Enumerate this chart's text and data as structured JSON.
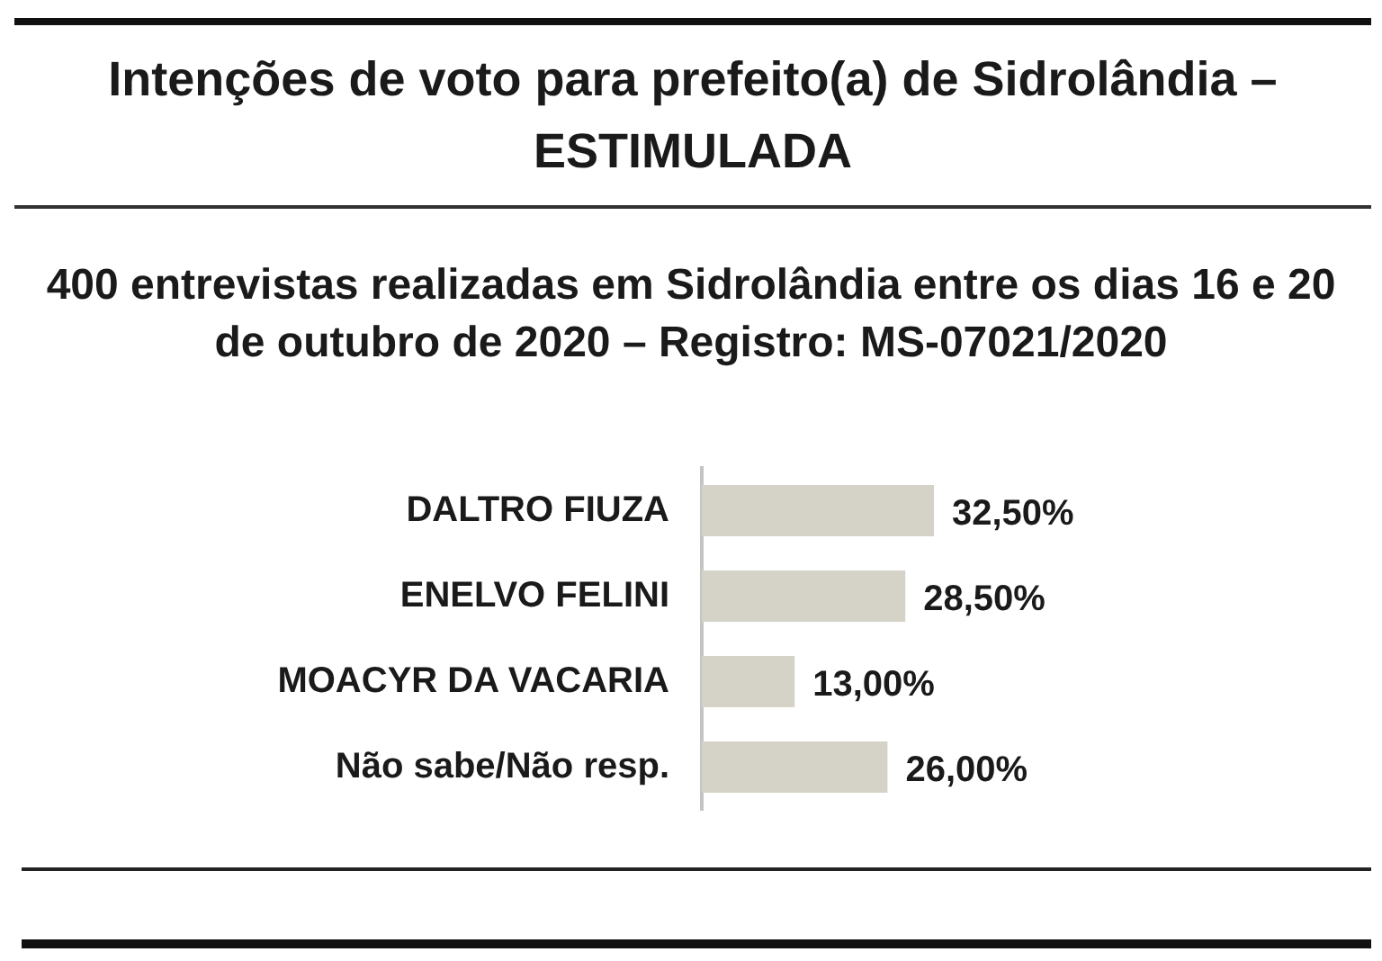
{
  "chart_data": {
    "type": "bar",
    "orientation": "horizontal",
    "title": "Intenções de voto para prefeito(a) de Sidrolândia – ESTIMULADA",
    "subtitle": "400 entrevistas realizadas em Sidrolândia entre os dias 16 e 20 de outubro de 2020 – Registro: MS-07021/2020",
    "categories": [
      "DALTRO FIUZA",
      "ENELVO FELINI",
      "MOACYR DA VACARIA",
      "Não sabe/Não resp."
    ],
    "values": [
      32.5,
      28.5,
      13,
      26
    ],
    "value_labels": [
      "32,50%",
      "28,50%",
      "13,00%",
      "26,00%"
    ],
    "color": "#d5d3c7"
  }
}
